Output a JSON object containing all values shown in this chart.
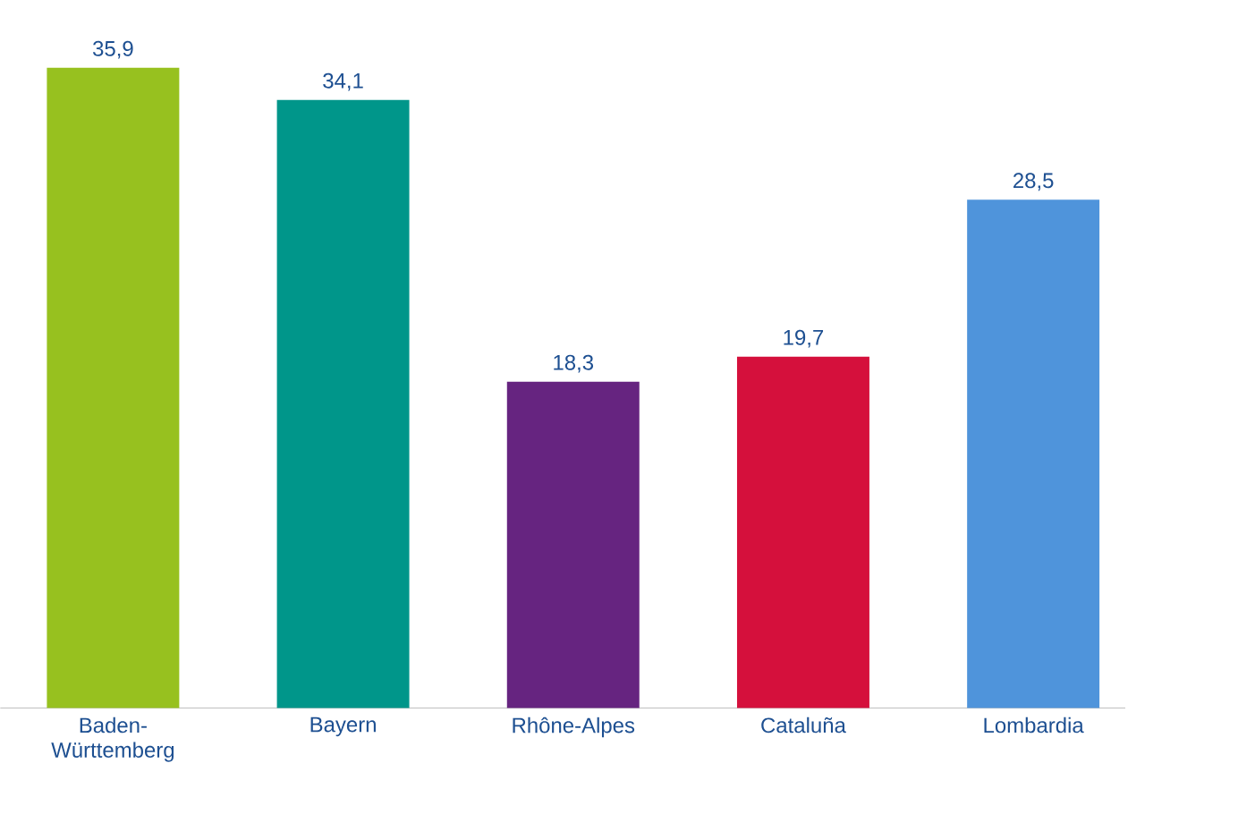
{
  "chart_data": {
    "type": "bar",
    "categories": [
      "Baden-Württemberg",
      "Bayern",
      "Rhône-Alpes",
      "Cataluña",
      "Lombardia"
    ],
    "values": [
      35.9,
      34.1,
      18.3,
      19.7,
      28.5
    ],
    "colors": [
      "#97c11f",
      "#00968a",
      "#662480",
      "#d5103c",
      "#4f94db"
    ],
    "value_labels": [
      "35,9",
      "34,1",
      "18,3",
      "19,7",
      "28,5"
    ]
  }
}
